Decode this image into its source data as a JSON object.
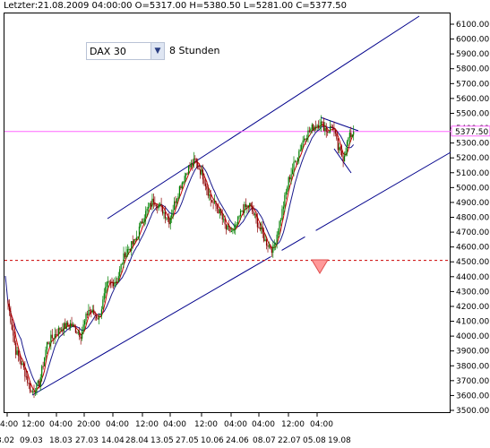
{
  "status": {
    "text": "Letzter:21.08.2009 04:00:00 O=5317.00 H=5380.50 L=5281.00 C=5377.50"
  },
  "toolbar": {
    "instrument": "DAX 30",
    "timeframe": "8 Stunden"
  },
  "colors": {
    "candle_up": "#008000",
    "candle_down": "#8b0000",
    "ma_fast": "#cc0000",
    "ma_slow": "#1a1a8c",
    "channel": "#00008b",
    "last_price_line": "#ff66ff",
    "support_line": "#cc0000",
    "alert_marker": "#ff7777"
  },
  "icons": {
    "dropdown": "chevron-down-icon",
    "alert": "triangle-down-icon"
  },
  "chart_data": {
    "type": "candlestick",
    "last_price_label": "5377.50",
    "last_price": 5377.5,
    "support_level": 4510,
    "ylim": [
      3500,
      6100
    ],
    "y_ticks": [
      "6100.00",
      "6000.00",
      "5900.00",
      "5800.00",
      "5700.00",
      "5600.00",
      "5500.00",
      "5400.00",
      "5300.00",
      "5200.00",
      "5100.00",
      "5000.00",
      "4900.00",
      "4800.00",
      "4700.00",
      "4600.00",
      "4500.00",
      "4400.00",
      "4300.00",
      "4200.00",
      "4100.00",
      "4000.00",
      "3900.00",
      "3800.00",
      "3700.00",
      "3600.00",
      "3500.00"
    ],
    "x_ticks_time": [
      "4:00",
      "12:00",
      "04:00",
      "20:00",
      "04:00",
      "12:00",
      "04:00",
      "12:00",
      "04:00",
      "04:00",
      "12:00",
      "04:00"
    ],
    "x_ticks_date": [
      "3.02",
      "09.03",
      "18.03",
      "27.03",
      "14.04",
      "28.04",
      "13.05",
      "27.05",
      "10.06",
      "24.06",
      "08.07",
      "22.07",
      "05.08",
      "19.08"
    ],
    "price_path": [
      [
        0,
        4220
      ],
      [
        6,
        3900
      ],
      [
        12,
        3780
      ],
      [
        18,
        3620
      ],
      [
        24,
        3680
      ],
      [
        30,
        3950
      ],
      [
        40,
        4050
      ],
      [
        48,
        4080
      ],
      [
        56,
        4010
      ],
      [
        62,
        4180
      ],
      [
        70,
        4120
      ],
      [
        76,
        4340
      ],
      [
        84,
        4380
      ],
      [
        90,
        4560
      ],
      [
        98,
        4640
      ],
      [
        104,
        4800
      ],
      [
        112,
        4920
      ],
      [
        118,
        4860
      ],
      [
        124,
        4780
      ],
      [
        132,
        5000
      ],
      [
        138,
        5120
      ],
      [
        144,
        5180
      ],
      [
        150,
        5080
      ],
      [
        156,
        4920
      ],
      [
        162,
        4850
      ],
      [
        168,
        4720
      ],
      [
        174,
        4700
      ],
      [
        180,
        4850
      ],
      [
        186,
        4880
      ],
      [
        192,
        4760
      ],
      [
        198,
        4640
      ],
      [
        204,
        4580
      ],
      [
        210,
        4800
      ],
      [
        216,
        5050
      ],
      [
        222,
        5200
      ],
      [
        228,
        5340
      ],
      [
        234,
        5400
      ],
      [
        240,
        5440
      ],
      [
        246,
        5380
      ],
      [
        250,
        5420
      ],
      [
        254,
        5260
      ],
      [
        258,
        5200
      ],
      [
        262,
        5330
      ],
      [
        266,
        5377.5
      ]
    ]
  }
}
